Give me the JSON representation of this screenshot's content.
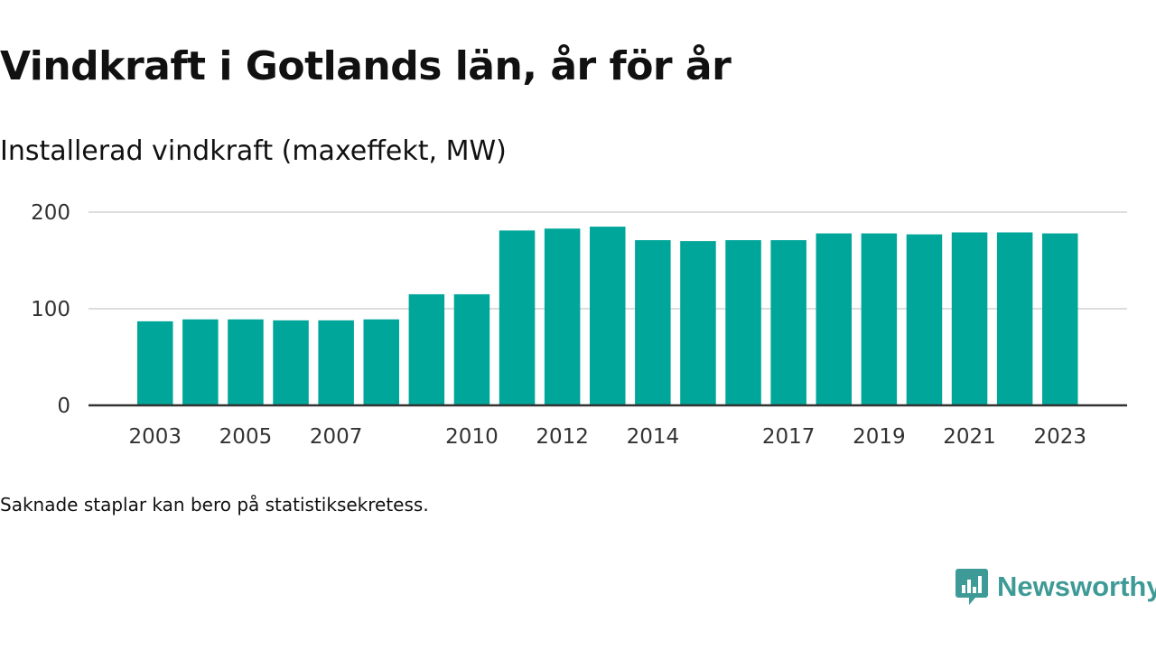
{
  "title": "Vindkraft i Gotlands län, år för år",
  "subtitle": "Installerad vindkraft (maxeffekt, MW)",
  "note": "Saknade staplar kan bero på statistiksekretess.",
  "brand": {
    "name": "Newsworthy",
    "icon": "newsworthy-logo-icon",
    "color": "#3e9a96"
  },
  "colors": {
    "bar": "#00a699",
    "grid": "#dddddd",
    "axis": "#333333"
  },
  "chart_data": {
    "type": "bar",
    "categories": [
      "2003",
      "2004",
      "2005",
      "2006",
      "2007",
      "2008",
      "2009",
      "2010",
      "2011",
      "2012",
      "2013",
      "2014",
      "2015",
      "2016",
      "2017",
      "2018",
      "2019",
      "2020",
      "2021",
      "2022",
      "2023"
    ],
    "tick_labels": [
      "2003",
      "2005",
      "2007",
      "2010",
      "2012",
      "2014",
      "2017",
      "2019",
      "2021",
      "2023"
    ],
    "values": [
      87,
      89,
      89,
      88,
      88,
      89,
      115,
      115,
      181,
      183,
      185,
      171,
      170,
      171,
      171,
      178,
      178,
      177,
      179,
      179,
      178
    ],
    "title": "Vindkraft i Gotlands län, år för år",
    "subtitle": "Installerad vindkraft (maxeffekt, MW)",
    "xlabel": "",
    "ylabel": "",
    "ylim": [
      0,
      200
    ],
    "yticks": [
      0,
      100,
      200
    ],
    "grid": true,
    "legend": "none"
  }
}
